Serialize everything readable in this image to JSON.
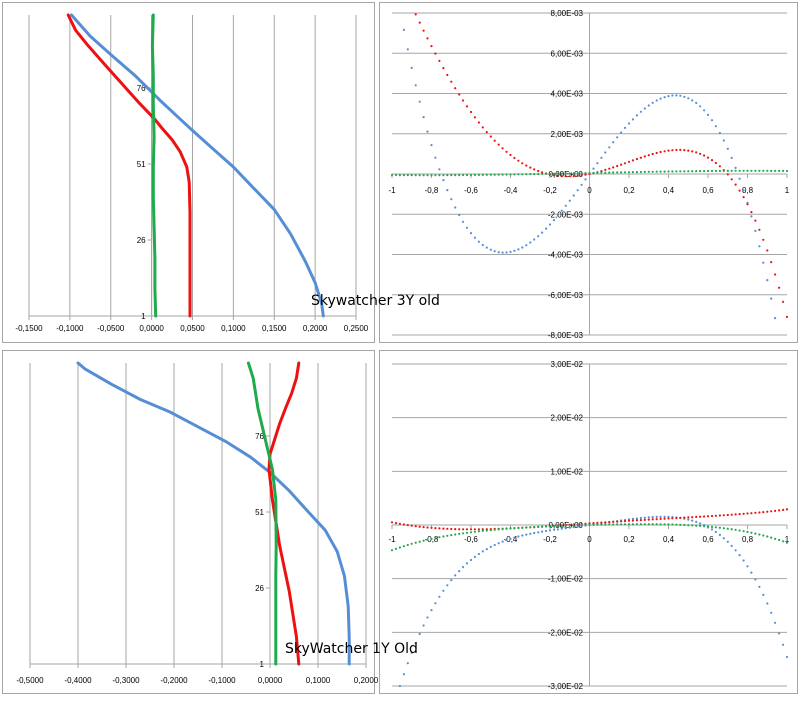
{
  "captions": {
    "top": "Skywatcher 3Y old",
    "bottom": "SkyWatcher 1Y Old"
  },
  "colors": {
    "blue": "#558ed5",
    "red": "#ee1111",
    "green": "#1faa4c",
    "grid": "#a6a6a6",
    "border": "#a6a6a6"
  },
  "chart_data": [
    {
      "type": "line",
      "x_tick_labels": [
        "-0,1500",
        "-0,1000",
        "-0,0500",
        "0,0000",
        "0,0500",
        "0,1000",
        "0,1500",
        "0,2000",
        "0,2500"
      ],
      "y_tick_labels": [
        "1",
        "26",
        "51",
        "76"
      ],
      "xlim": [
        -0.15,
        0.25
      ],
      "ylim": [
        1,
        100
      ],
      "grid": "vertical",
      "series": [
        {
          "color": "blue",
          "x": [
            0.21,
            0.208,
            0.2,
            0.188,
            0.17,
            0.15,
            0.125,
            0.1,
            0.075,
            0.05,
            0.03,
            0.01,
            -0.02,
            -0.05,
            -0.075,
            -0.098
          ],
          "y": [
            1,
            5,
            12,
            19,
            28,
            36,
            43,
            50,
            56,
            62,
            67,
            72,
            80,
            87,
            93,
            100
          ]
        },
        {
          "color": "red",
          "x": [
            0.047,
            0.047,
            0.047,
            0.046,
            0.043,
            0.035,
            0.025,
            0.012,
            0.003,
            -0.015,
            -0.035,
            -0.055,
            -0.078,
            -0.093,
            -0.102
          ],
          "y": [
            1,
            15,
            35,
            45,
            50,
            55,
            59,
            63,
            66,
            71,
            77,
            83,
            90,
            95,
            100
          ]
        },
        {
          "color": "green",
          "x": [
            0.005,
            0.004,
            0.004,
            0.003,
            0.002,
            0.002,
            0.003,
            0.002,
            0.002,
            0.001,
            0.002
          ],
          "y": [
            1,
            10,
            20,
            30,
            40,
            50,
            60,
            70,
            80,
            90,
            100
          ]
        }
      ]
    },
    {
      "type": "scatter",
      "x_tick_labels": [
        "-1",
        "-0,8",
        "-0,6",
        "-0,4",
        "-0,2",
        "0",
        "0,2",
        "0,4",
        "0,6",
        "0,8",
        "1"
      ],
      "y_tick_labels": [
        "-8,00E-03",
        "-6,00E-03",
        "-4,00E-03",
        "-2,00E-03",
        "0,00E+00",
        "2,00E-03",
        "4,00E-03",
        "6,00E-03",
        "8,00E-03"
      ],
      "xlim": [
        -1,
        1
      ],
      "ylim": [
        -0.008,
        0.008
      ],
      "grid": "horizontal",
      "series": [
        {
          "color": "blue",
          "poly": [
            0,
            0.0135,
            0,
            -0.0239
          ]
        },
        {
          "color": "red",
          "poly": [
            0,
            0.002,
            0.0075,
            -0.0108,
            -0.0058
          ]
        },
        {
          "color": "green",
          "poly": [
            5e-05,
            0.0002,
            0,
            -0.0001
          ]
        }
      ]
    },
    {
      "type": "line",
      "x_tick_labels": [
        "-0,5000",
        "-0,4000",
        "-0,3000",
        "-0,2000",
        "-0,1000",
        "0,0000",
        "0,1000",
        "0,2000"
      ],
      "y_tick_labels": [
        "1",
        "26",
        "51",
        "76"
      ],
      "xlim": [
        -0.5,
        0.2
      ],
      "ylim": [
        1,
        100
      ],
      "grid": "vertical",
      "series": [
        {
          "color": "blue",
          "x": [
            0.165,
            0.165,
            0.163,
            0.155,
            0.14,
            0.115,
            0.08,
            0.04,
            0.0,
            -0.04,
            -0.09,
            -0.15,
            -0.21,
            -0.27,
            -0.33,
            -0.385,
            -0.4
          ],
          "y": [
            1,
            10,
            20,
            30,
            38,
            45,
            51,
            58,
            64,
            69,
            74,
            79,
            84,
            88,
            93,
            98,
            100
          ]
        },
        {
          "color": "red",
          "x": [
            0.06,
            0.055,
            0.04,
            0.02,
            0.005,
            -0.002,
            0.0,
            0.01,
            0.02,
            0.032,
            0.045,
            0.055,
            0.06
          ],
          "y": [
            1,
            10,
            25,
            40,
            55,
            65,
            70,
            75,
            80,
            85,
            90,
            95,
            100
          ]
        },
        {
          "color": "green",
          "x": [
            0.012,
            0.012,
            0.012,
            0.012,
            0.013,
            0.012,
            0.005,
            -0.01,
            -0.025,
            -0.035,
            -0.045
          ],
          "y": [
            1,
            10,
            20,
            30,
            40,
            55,
            65,
            75,
            85,
            95,
            100
          ]
        }
      ]
    },
    {
      "type": "scatter",
      "x_tick_labels": [
        "-1",
        "-0,8",
        "-0,6",
        "-0,4",
        "-0,2",
        "0",
        "0,2",
        "0,4",
        "0,6",
        "0,8",
        "1"
      ],
      "y_tick_labels": [
        "-3,00E-02",
        "-2,00E-02",
        "-1,00E-02",
        "0,00E+00",
        "1,00E-02",
        "2,00E-02",
        "3,00E-02"
      ],
      "xlim": [
        -1,
        1
      ],
      "ylim": [
        -0.03,
        0.03
      ],
      "grid": "horizontal",
      "series": [
        {
          "color": "blue",
          "poly": [
            0,
            0.0051,
            0.0017,
            0,
            -0.0314
          ]
        },
        {
          "color": "red",
          "poly": [
            0.0003,
            0.0025,
            -0.0003,
            -0.0013,
            0.0017
          ]
        },
        {
          "color": "green",
          "poly": [
            0,
            0.001,
            -0.0013,
            -0.0003,
            -0.0027
          ]
        }
      ]
    }
  ]
}
